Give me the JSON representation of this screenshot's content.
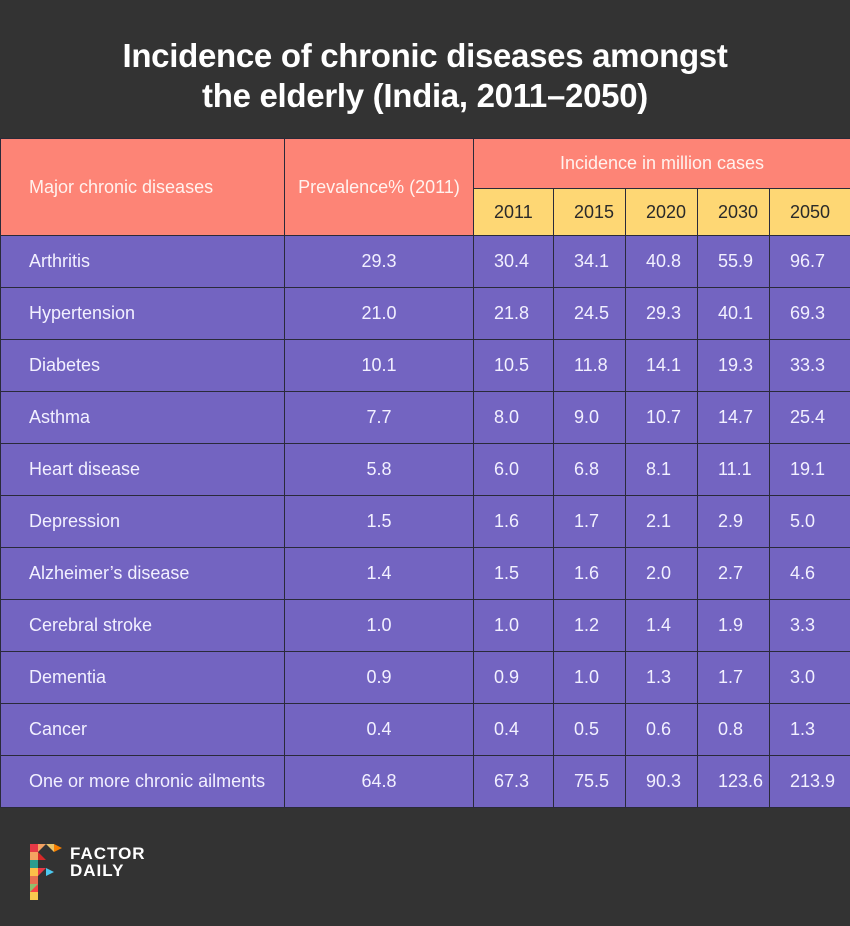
{
  "title_line1": "Incidence of chronic diseases amongst",
  "title_line2": "the elderly (India, 2011–2050)",
  "colors": {
    "background": "#333333",
    "header": "#fd8476",
    "year_header": "#fed774",
    "rows": "#7364c1"
  },
  "chart_data": {
    "type": "table",
    "title": "Incidence of chronic diseases amongst the elderly (India, 2011–2050)",
    "columns": {
      "disease": "Major chronic diseases",
      "prevalence": "Prevalence% (2011)",
      "incidence_group": "Incidence in million cases",
      "years": [
        "2011",
        "2015",
        "2020",
        "2030",
        "2050"
      ]
    },
    "rows": [
      {
        "name": "Arthritis",
        "prevalence": "29.3",
        "values": [
          "30.4",
          "34.1",
          "40.8",
          "55.9",
          "96.7"
        ]
      },
      {
        "name": "Hypertension",
        "prevalence": "21.0",
        "values": [
          "21.8",
          "24.5",
          "29.3",
          "40.1",
          "69.3"
        ]
      },
      {
        "name": "Diabetes",
        "prevalence": "10.1",
        "values": [
          "10.5",
          "11.8",
          "14.1",
          "19.3",
          "33.3"
        ]
      },
      {
        "name": "Asthma",
        "prevalence": "7.7",
        "values": [
          "8.0",
          "9.0",
          "10.7",
          "14.7",
          "25.4"
        ]
      },
      {
        "name": "Heart disease",
        "prevalence": "5.8",
        "values": [
          "6.0",
          "6.8",
          "8.1",
          "11.1",
          "19.1"
        ]
      },
      {
        "name": "Depression",
        "prevalence": "1.5",
        "values": [
          "1.6",
          "1.7",
          "2.1",
          "2.9",
          "5.0"
        ]
      },
      {
        "name": "Alzheimer’s  disease",
        "prevalence": "1.4",
        "values": [
          "1.5",
          "1.6",
          "2.0",
          "2.7",
          "4.6"
        ]
      },
      {
        "name": "Cerebral stroke",
        "prevalence": "1.0",
        "values": [
          "1.0",
          "1.2",
          "1.4",
          "1.9",
          "3.3"
        ]
      },
      {
        "name": "Dementia",
        "prevalence": "0.9",
        "values": [
          "0.9",
          "1.0",
          "1.3",
          "1.7",
          "3.0"
        ]
      },
      {
        "name": "Cancer",
        "prevalence": "0.4",
        "values": [
          "0.4",
          "0.5",
          "0.6",
          "0.8",
          "1.3"
        ]
      },
      {
        "name": "One or more chronic ailments",
        "prevalence": "64.8",
        "values": [
          "67.3",
          "75.5",
          "90.3",
          "123.6",
          "213.9"
        ]
      }
    ]
  },
  "footer": {
    "logo_line1": "FACTOR",
    "logo_line2": "DAILY",
    "logo_icon": "factor-daily-f-logo"
  }
}
